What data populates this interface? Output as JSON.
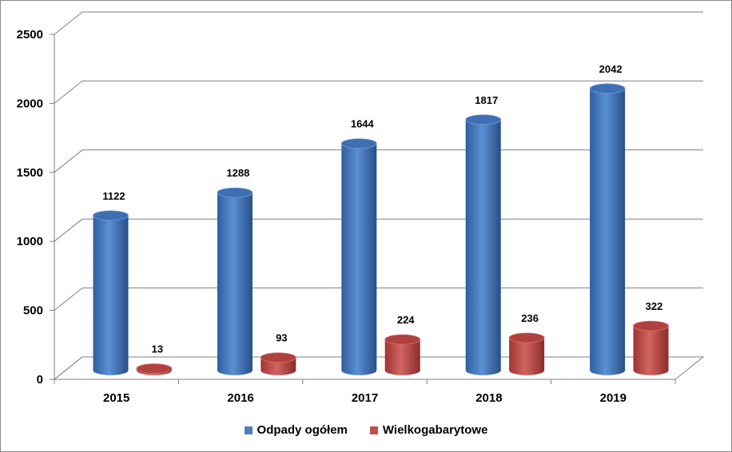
{
  "chart_data": {
    "type": "bar",
    "categories": [
      "2015",
      "2016",
      "2017",
      "2018",
      "2019"
    ],
    "series": [
      {
        "name": "Odpady ogółem",
        "values": [
          1122,
          1288,
          1644,
          1817,
          2042
        ],
        "color": "#4A7EC3"
      },
      {
        "name": "Wielkogabarytowe",
        "values": [
          13,
          93,
          224,
          236,
          322
        ],
        "color": "#C0504D"
      }
    ],
    "y_ticks": [
      "0",
      "500",
      "1000",
      "1500",
      "2000",
      "2500"
    ],
    "ylim": [
      0,
      2500
    ],
    "grid": true,
    "legend_position": "bottom"
  }
}
